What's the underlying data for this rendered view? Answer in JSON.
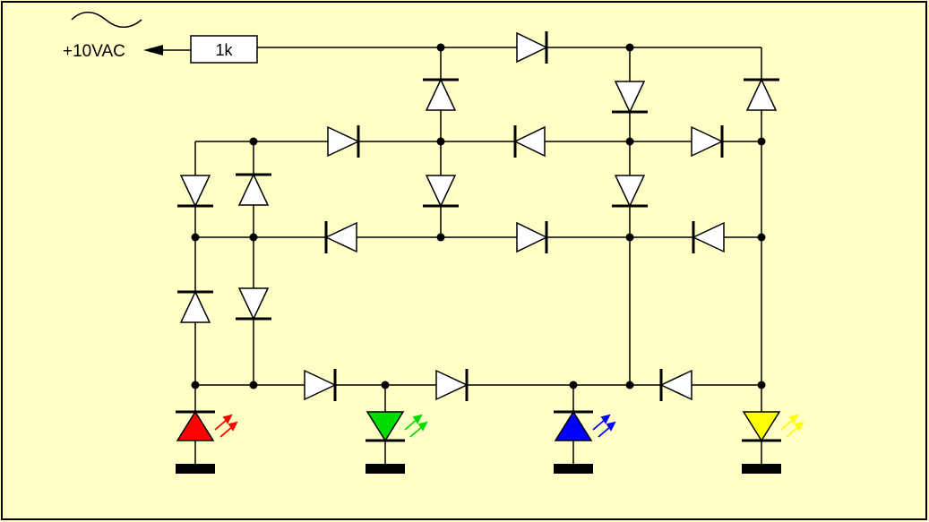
{
  "source": {
    "label": "+10VAC"
  },
  "resistor": {
    "label": "1k"
  },
  "colors": {
    "background": "#ffffc6",
    "wire": "#000000",
    "led_red": "#ff0000",
    "led_green": "#00dd00",
    "led_blue": "#0000ff",
    "led_yellow": "#ffff00"
  }
}
